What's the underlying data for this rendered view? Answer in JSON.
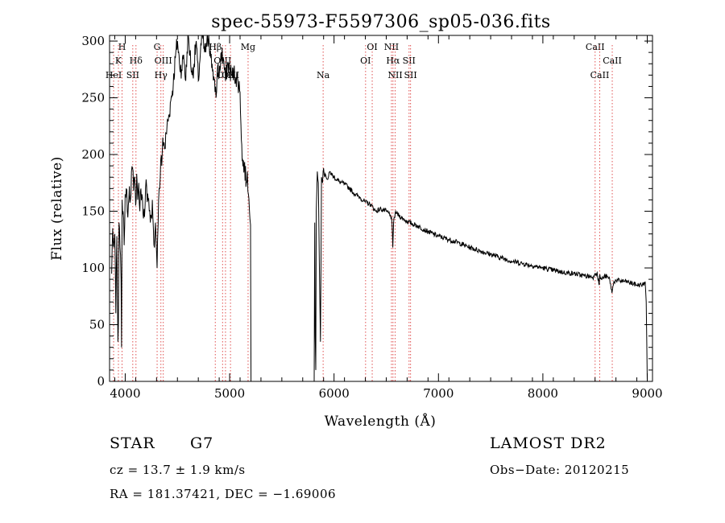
{
  "chart_data": {
    "type": "line",
    "title": "spec-55973-F5597306_sp05-036.fits",
    "xlabel": "Wavelength (Å)",
    "ylabel": "Flux (relative)",
    "xlim": [
      3850,
      9050
    ],
    "ylim": [
      0,
      305
    ],
    "xticks": [
      4000,
      5000,
      6000,
      7000,
      8000,
      9000
    ],
    "yticks": [
      0,
      50,
      100,
      150,
      200,
      250,
      300
    ],
    "grid": false,
    "line_color": "#000000",
    "marker_color": "#e05050",
    "series": [
      {
        "x": [
          3870,
          3880,
          3890,
          3900,
          3910,
          3920,
          3930,
          3935,
          3940,
          3950,
          3960,
          3965,
          3970,
          3980,
          3990,
          4000,
          4010,
          4020,
          4030,
          4040,
          4050,
          4060,
          4070,
          4080,
          4090,
          4100,
          4110,
          4120,
          4130,
          4140,
          4150,
          4160,
          4170,
          4180,
          4190,
          4200,
          4210,
          4220,
          4230,
          4240,
          4250,
          4260,
          4270,
          4280,
          4290,
          4300,
          4305,
          4310,
          4320,
          4330,
          4340,
          4350,
          4360,
          4380,
          4400,
          4420,
          4440,
          4460,
          4480,
          4500,
          4520,
          4540,
          4560,
          4580,
          4600,
          4620,
          4640,
          4660,
          4680,
          4700,
          4720,
          4740,
          4760,
          4780,
          4800,
          4820,
          4840,
          4860,
          4870,
          4880,
          4890,
          4900,
          4920,
          4940,
          4960,
          4980,
          5000,
          5020,
          5040,
          5060,
          5080,
          5100,
          5120,
          5140,
          5160,
          5170,
          5180,
          5190,
          5200,
          5205,
          5810,
          5815,
          5820,
          5825,
          5830,
          5840,
          5850,
          5860,
          5870,
          5880,
          5890,
          5895,
          5900,
          5910,
          5920,
          5940,
          5960,
          5980,
          6000,
          6050,
          6100,
          6150,
          6200,
          6250,
          6300,
          6350,
          6400,
          6450,
          6500,
          6540,
          6555,
          6563,
          6570,
          6590,
          6600,
          6650,
          6700,
          6800,
          6900,
          7000,
          7100,
          7200,
          7300,
          7400,
          7500,
          7600,
          7700,
          7800,
          7900,
          8000,
          8100,
          8200,
          8300,
          8400,
          8490,
          8500,
          8520,
          8540,
          8542,
          8560,
          8600,
          8640,
          8662,
          8680,
          8700,
          8800,
          8900,
          8960,
          8980,
          8990,
          9000
        ],
        "y": [
          95,
          135,
          118,
          130,
          60,
          128,
          35,
          50,
          140,
          118,
          90,
          30,
          160,
          150,
          120,
          165,
          170,
          150,
          155,
          172,
          160,
          185,
          188,
          168,
          180,
          155,
          183,
          160,
          175,
          150,
          170,
          165,
          148,
          152,
          155,
          178,
          158,
          160,
          150,
          140,
          145,
          160,
          135,
          118,
          140,
          115,
          100,
          125,
          160,
          170,
          195,
          190,
          215,
          205,
          225,
          235,
          250,
          262,
          285,
          300,
          280,
          275,
          288,
          265,
          305,
          290,
          270,
          280,
          300,
          265,
          290,
          305,
          290,
          295,
          305,
          285,
          275,
          255,
          250,
          270,
          280,
          268,
          290,
          285,
          265,
          280,
          275,
          270,
          272,
          268,
          265,
          255,
          195,
          190,
          175,
          185,
          165,
          150,
          138,
          0,
          0,
          140,
          40,
          10,
          150,
          185,
          175,
          100,
          35,
          180,
          175,
          185,
          188,
          180,
          182,
          178,
          185,
          182,
          180,
          176,
          174,
          170,
          165,
          162,
          158,
          156,
          150,
          152,
          150,
          147,
          140,
          118,
          140,
          150,
          148,
          144,
          141,
          137,
          132,
          128,
          125,
          122,
          118,
          115,
          112,
          109,
          106,
          104,
          102,
          100,
          98,
          96,
          95,
          93,
          92,
          95,
          96,
          85,
          93,
          90,
          93,
          90,
          78,
          88,
          89,
          88,
          85,
          85,
          88,
          70,
          0
        ]
      }
    ],
    "line_markers": [
      {
        "label": "H",
        "wavelength": 3969.6,
        "row": 0
      },
      {
        "label": "K",
        "wavelength": 3934.8,
        "row": 1
      },
      {
        "label": "HeI",
        "wavelength": 3889.0,
        "row": 2
      },
      {
        "label": "Hδ",
        "wavelength": 4102.9,
        "row": 1
      },
      {
        "label": "SII",
        "wavelength": 4072.3,
        "row": 2
      },
      {
        "label": "G",
        "wavelength": 4305.6,
        "row": 0
      },
      {
        "label": "OIII",
        "wavelength": 4364.4,
        "row": 1
      },
      {
        "label": "Hγ",
        "wavelength": 4341.7,
        "row": 2
      },
      {
        "label": "Hβ",
        "wavelength": 4862.7,
        "row": 0
      },
      {
        "label": "OIII",
        "wavelength": 4932.6,
        "row": 1
      },
      {
        "label": "OIII",
        "wavelength": 4960.3,
        "row": 2
      },
      {
        "label": "OIII",
        "wavelength": 5008.2,
        "row": 2
      },
      {
        "label": "Mg",
        "wavelength": 5176.7,
        "row": 0
      },
      {
        "label": "Na",
        "wavelength": 5895.6,
        "row": 2
      },
      {
        "label": "OI",
        "wavelength": 6365.5,
        "row": 0
      },
      {
        "label": "OI",
        "wavelength": 6302.0,
        "row": 1
      },
      {
        "label": "NII",
        "wavelength": 6549.9,
        "row": 0
      },
      {
        "label": "Hα",
        "wavelength": 6564.6,
        "row": 1
      },
      {
        "label": "NII",
        "wavelength": 6585.3,
        "row": 2
      },
      {
        "label": "SII",
        "wavelength": 6718.3,
        "row": 1
      },
      {
        "label": "SII",
        "wavelength": 6732.7,
        "row": 2
      },
      {
        "label": "CaII",
        "wavelength": 8500.4,
        "row": 0
      },
      {
        "label": "CaII",
        "wavelength": 8664.5,
        "row": 1
      },
      {
        "label": "CaII",
        "wavelength": 8544.4,
        "row": 2
      }
    ]
  },
  "info": {
    "object_class": "STAR",
    "subclass": "G7",
    "cz": "cz = 13.7 ± 1.9 km/s",
    "coords": "RA = 181.37421, DEC =  −1.69006",
    "survey": "LAMOST DR2",
    "obs_date": "Obs−Date: 20120215"
  }
}
